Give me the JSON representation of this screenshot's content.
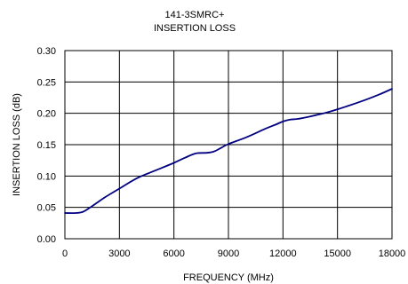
{
  "chart_data": {
    "type": "line",
    "title": [
      "141-3SMRC+",
      "INSERTION LOSS"
    ],
    "xlabel": "FREQUENCY (MHz)",
    "ylabel": "INSERTION LOSS (dB)",
    "xlim": [
      0,
      18000
    ],
    "ylim": [
      0,
      0.3
    ],
    "xticks": [
      0,
      3000,
      6000,
      9000,
      12000,
      15000,
      18000
    ],
    "xtick_labels": [
      "0",
      "3000",
      "6000",
      "9000",
      "12000",
      "15000",
      "18000"
    ],
    "yticks": [
      0,
      0.05,
      0.1,
      0.15,
      0.2,
      0.25,
      0.3
    ],
    "ytick_labels": [
      "0.00",
      "0.05",
      "0.10",
      "0.15",
      "0.20",
      "0.25",
      "0.30"
    ],
    "grid": true,
    "series": [
      {
        "color": "#000080",
        "x": [
          0,
          600,
          1000,
          1400,
          1800,
          2200,
          3000,
          4000,
          5000,
          6000,
          6600,
          7200,
          7800,
          8200,
          8600,
          9000,
          10000,
          11000,
          11600,
          12000,
          12400,
          12800,
          13500,
          14500,
          15500,
          16500,
          17300,
          18000
        ],
        "y": [
          0.041,
          0.041,
          0.043,
          0.05,
          0.058,
          0.066,
          0.08,
          0.097,
          0.109,
          0.121,
          0.129,
          0.136,
          0.137,
          0.139,
          0.145,
          0.151,
          0.162,
          0.175,
          0.182,
          0.187,
          0.19,
          0.191,
          0.195,
          0.202,
          0.211,
          0.221,
          0.23,
          0.239
        ]
      }
    ]
  }
}
